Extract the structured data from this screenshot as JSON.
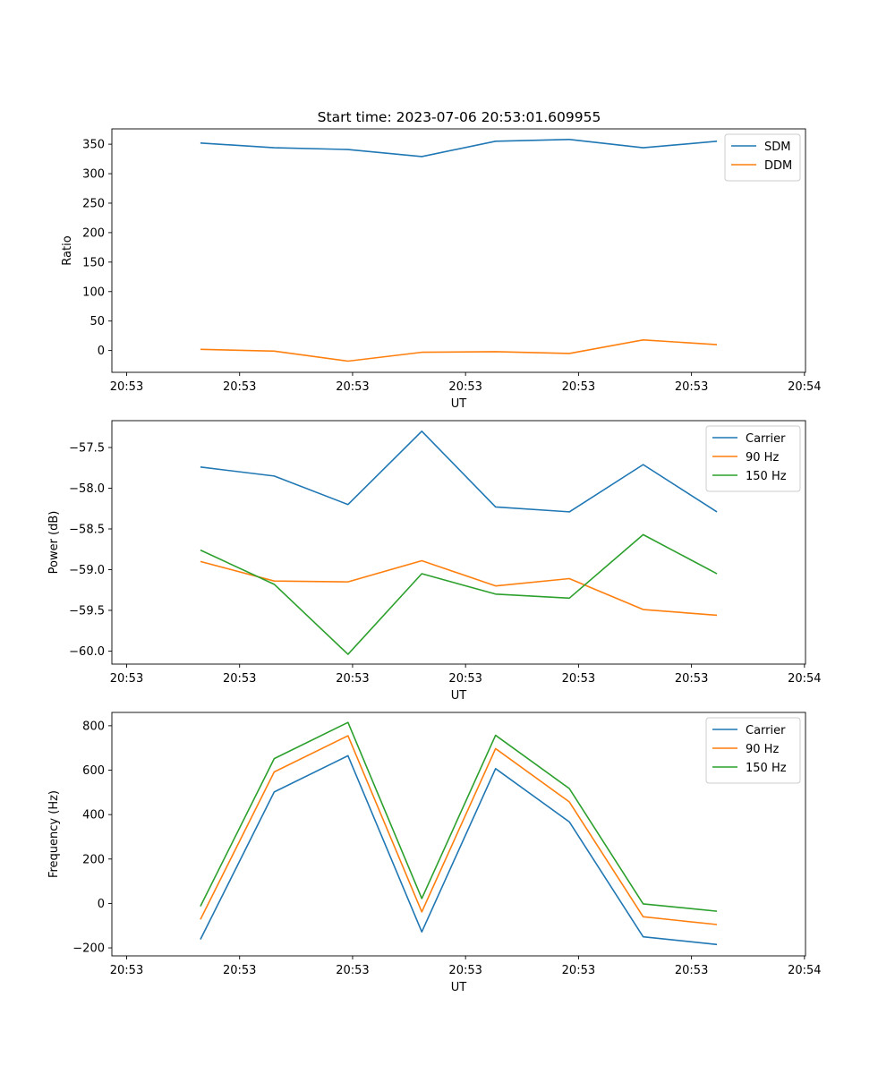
{
  "figure": {
    "title": "Start time: 2023-07-06 20:53:01.609955"
  },
  "chart_data": [
    {
      "type": "line",
      "title": "Start time: 2023-07-06 20:53:01.609955",
      "xlabel": "UT",
      "ylabel": "Ratio",
      "x": [
        1,
        2,
        3,
        4,
        5,
        6,
        7,
        8
      ],
      "xticks": [
        0,
        1.531,
        3.062,
        4.593,
        6.124,
        7.655,
        9.186
      ],
      "xtick_labels": [
        "20:53",
        "20:53",
        "20:53",
        "20:53",
        "20:53",
        "20:53",
        "20:54"
      ],
      "xlim": [
        -0.2,
        9.2
      ],
      "yticks": [
        0,
        50,
        100,
        150,
        200,
        250,
        300,
        350
      ],
      "ylim": [
        -37,
        376
      ],
      "legend": "top-right",
      "series": [
        {
          "name": "SDM",
          "color": "#1f77b4",
          "values": [
            352,
            344,
            341,
            329,
            355,
            358,
            344,
            355
          ]
        },
        {
          "name": "DDM",
          "color": "#ff7f0e",
          "values": [
            2,
            -1,
            -18,
            -3,
            -2,
            -5,
            18,
            10
          ]
        }
      ]
    },
    {
      "type": "line",
      "title": "",
      "xlabel": "UT",
      "ylabel": "Power (dB)",
      "x": [
        1,
        2,
        3,
        4,
        5,
        6,
        7,
        8
      ],
      "xticks": [
        0,
        1.531,
        3.062,
        4.593,
        6.124,
        7.655,
        9.186
      ],
      "xtick_labels": [
        "20:53",
        "20:53",
        "20:53",
        "20:53",
        "20:53",
        "20:53",
        "20:54"
      ],
      "xlim": [
        -0.2,
        9.2
      ],
      "yticks": [
        -60.0,
        -59.5,
        -59.0,
        -58.5,
        -58.0,
        -57.5
      ],
      "ytick_labels": [
        "−60.0",
        "−59.5",
        "−59.0",
        "−58.5",
        "−58.0",
        "−57.5"
      ],
      "ylim": [
        -60.16,
        -57.17
      ],
      "legend": "top-right",
      "series": [
        {
          "name": "Carrier",
          "color": "#1f77b4",
          "values": [
            -57.74,
            -57.85,
            -58.2,
            -57.3,
            -58.23,
            -58.29,
            -57.71,
            -58.29
          ]
        },
        {
          "name": "90 Hz",
          "color": "#ff7f0e",
          "values": [
            -58.9,
            -59.14,
            -59.15,
            -58.89,
            -59.2,
            -59.11,
            -59.49,
            -59.56
          ]
        },
        {
          "name": "150 Hz",
          "color": "#2ca02c",
          "values": [
            -58.76,
            -59.18,
            -60.04,
            -59.05,
            -59.3,
            -59.35,
            -58.57,
            -59.05
          ]
        }
      ]
    },
    {
      "type": "line",
      "title": "",
      "xlabel": "UT",
      "ylabel": "Frequency (Hz)",
      "x": [
        1,
        2,
        3,
        4,
        5,
        6,
        7,
        8
      ],
      "xticks": [
        0,
        1.531,
        3.062,
        4.593,
        6.124,
        7.655,
        9.186
      ],
      "xtick_labels": [
        "20:53",
        "20:53",
        "20:53",
        "20:53",
        "20:53",
        "20:53",
        "20:54"
      ],
      "xlim": [
        -0.2,
        9.2
      ],
      "yticks": [
        -200,
        0,
        200,
        400,
        600,
        800
      ],
      "ytick_labels": [
        "−200",
        "0",
        "200",
        "400",
        "600",
        "800"
      ],
      "ylim": [
        -236,
        860
      ],
      "legend": "top-right",
      "series": [
        {
          "name": "Carrier",
          "color": "#1f77b4",
          "values": [
            -162,
            502,
            665,
            -128,
            607,
            367,
            -150,
            -185
          ]
        },
        {
          "name": "90 Hz",
          "color": "#ff7f0e",
          "values": [
            -72,
            592,
            755,
            -38,
            697,
            457,
            -60,
            -95
          ]
        },
        {
          "name": "150 Hz",
          "color": "#2ca02c",
          "values": [
            -13,
            652,
            815,
            22,
            757,
            517,
            -2,
            -35
          ]
        }
      ]
    }
  ]
}
